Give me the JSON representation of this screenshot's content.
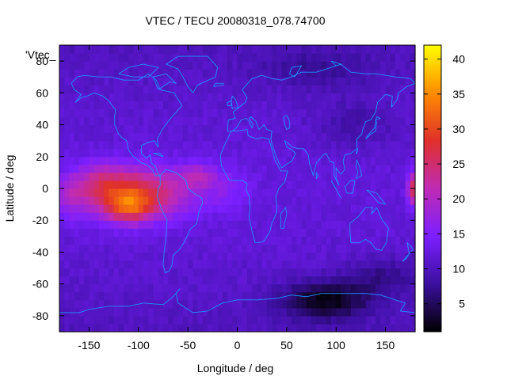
{
  "chart_data": {
    "type": "heatmap",
    "title": "VTEC / TECU 20080318_078.74700",
    "xlabel": "Longitude / deg",
    "ylabel": "Latitude / deg",
    "legend_key": "'Vtec_",
    "xlim": [
      -180,
      180
    ],
    "ylim": [
      -90,
      90
    ],
    "x_ticks": [
      -150,
      -100,
      -50,
      0,
      50,
      100,
      150
    ],
    "y_ticks": [
      -80,
      -60,
      -40,
      -20,
      0,
      20,
      40,
      60,
      80
    ],
    "y_tick_labels": [
      "-80",
      "-60",
      "-40",
      "-20",
      "0",
      "20",
      "40",
      "60",
      "80"
    ],
    "colorbar": {
      "range": [
        1,
        42
      ],
      "ticks": [
        5,
        10,
        15,
        20,
        25,
        30,
        35,
        40
      ],
      "tick_labels": [
        "5",
        "10",
        "15",
        "20",
        "25",
        "30",
        "35",
        "40"
      ],
      "colormap": [
        "#000000",
        "#3b0f9e",
        "#7b1fff",
        "#c02bb4",
        "#e0302a",
        "#ff8c00",
        "#ffff00"
      ]
    },
    "features": {
      "equatorial_anomaly_peak": {
        "lon": -110,
        "lat": -12,
        "value": 40
      },
      "anomaly_band_lon_range": [
        -170,
        -25
      ],
      "anomaly_band_lat_range": [
        -28,
        18
      ],
      "dateline_east_hotspot": {
        "lon": 178,
        "lat": 0,
        "value": 25
      },
      "south_polar_minimum": {
        "lon": 90,
        "lat": -70,
        "value": 2
      },
      "background_value": 11
    },
    "coastline_color": "#1e90ff",
    "grid": false
  }
}
